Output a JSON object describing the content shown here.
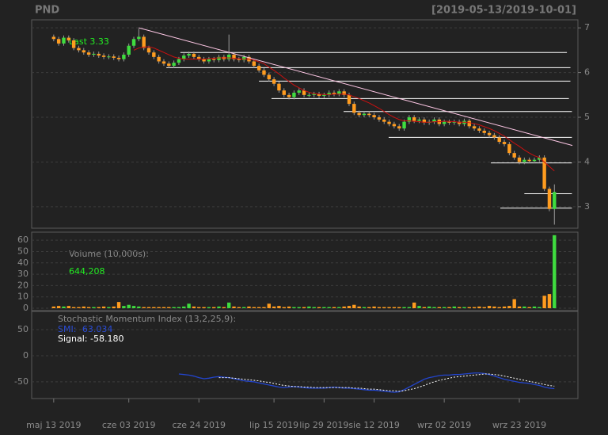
{
  "chart_data": {
    "type": "candlestick",
    "title": "PND",
    "date_range": "[2019-05-13/2019-10-01]",
    "last_label": "Last 3.33",
    "categories": [
      "maj 13 2019",
      null,
      null,
      null,
      null,
      null,
      null,
      null,
      null,
      null,
      null,
      null,
      null,
      null,
      null,
      "cze 03 2019",
      null,
      null,
      null,
      null,
      null,
      null,
      null,
      null,
      null,
      null,
      null,
      null,
      null,
      "cze 24 2019",
      null,
      null,
      null,
      null,
      null,
      null,
      null,
      null,
      null,
      null,
      null,
      null,
      null,
      null,
      "lip 15 2019",
      null,
      null,
      null,
      null,
      null,
      null,
      null,
      null,
      null,
      "lip 29 2019",
      null,
      null,
      null,
      null,
      null,
      null,
      null,
      null,
      null,
      "sie 12 2019",
      null,
      null,
      null,
      null,
      null,
      null,
      null,
      null,
      null,
      null,
      null,
      null,
      null,
      "wrz 02 2019",
      null,
      null,
      null,
      null,
      null,
      null,
      null,
      null,
      null,
      null,
      null,
      null,
      null,
      null,
      "wrz 23 2019",
      null,
      null,
      null,
      null,
      null,
      null,
      null
    ],
    "xlim": [
      -4.4,
      104.7
    ],
    "up_color": "#3fdc3f",
    "down_color": "#ff9c1f",
    "ylim": [
      2.52,
      7.18
    ],
    "yticks": [
      3,
      4,
      5,
      6,
      7
    ],
    "grid": true,
    "open": [
      6.8,
      6.75,
      6.65,
      6.78,
      6.72,
      6.55,
      6.5,
      6.45,
      6.4,
      6.42,
      6.38,
      6.35,
      6.36,
      6.33,
      6.3,
      6.4,
      6.6,
      6.75,
      6.8,
      6.55,
      6.45,
      6.35,
      6.25,
      6.2,
      6.15,
      6.22,
      6.3,
      6.38,
      6.42,
      6.35,
      6.3,
      6.25,
      6.3,
      6.28,
      6.35,
      6.3,
      6.4,
      6.3,
      6.28,
      6.35,
      6.25,
      6.15,
      6.05,
      5.95,
      5.85,
      5.75,
      5.6,
      5.5,
      5.45,
      5.55,
      5.6,
      5.5,
      5.5,
      5.52,
      5.48,
      5.5,
      5.55,
      5.52,
      5.58,
      5.5,
      5.3,
      5.1,
      5.05,
      5.08,
      5.05,
      5.0,
      4.95,
      4.9,
      4.85,
      4.8,
      4.75,
      4.9,
      5.0,
      4.92,
      4.95,
      4.88,
      4.9,
      4.95,
      4.85,
      4.9,
      4.88,
      4.9,
      4.85,
      4.92,
      4.8,
      4.75,
      4.7,
      4.65,
      4.6,
      4.55,
      4.45,
      4.4,
      4.2,
      4.1,
      4.0,
      4.05,
      4.02,
      4.05,
      4.1,
      3.4,
      2.95
    ],
    "high": [
      6.85,
      6.8,
      6.83,
      6.83,
      6.77,
      6.6,
      6.55,
      6.5,
      6.47,
      6.47,
      6.43,
      6.41,
      6.41,
      6.38,
      6.45,
      6.65,
      6.8,
      6.98,
      6.85,
      6.6,
      6.5,
      6.4,
      6.3,
      6.25,
      6.27,
      6.35,
      6.43,
      6.47,
      6.47,
      6.4,
      6.35,
      6.35,
      6.35,
      6.4,
      6.4,
      6.85,
      6.45,
      6.35,
      6.4,
      6.4,
      6.3,
      6.2,
      6.1,
      6.0,
      5.9,
      5.8,
      5.65,
      5.55,
      5.6,
      5.65,
      5.65,
      5.55,
      5.57,
      5.57,
      5.55,
      5.6,
      5.6,
      5.63,
      5.63,
      5.55,
      5.35,
      5.15,
      5.13,
      5.13,
      5.1,
      5.05,
      5.0,
      4.95,
      4.9,
      4.85,
      4.95,
      5.05,
      5.05,
      5.0,
      5.0,
      4.95,
      5.0,
      5.0,
      4.95,
      4.95,
      4.95,
      4.95,
      4.97,
      4.97,
      4.85,
      4.8,
      4.75,
      4.7,
      4.65,
      4.6,
      4.5,
      4.45,
      4.25,
      4.15,
      4.1,
      4.1,
      4.1,
      4.15,
      4.15,
      3.45,
      3.5
    ],
    "low": [
      6.7,
      6.6,
      6.6,
      6.67,
      6.5,
      6.45,
      6.4,
      6.35,
      6.35,
      6.33,
      6.3,
      6.3,
      6.28,
      6.25,
      6.25,
      6.35,
      6.55,
      6.7,
      6.5,
      6.4,
      6.3,
      6.2,
      6.15,
      6.1,
      6.1,
      6.17,
      6.25,
      6.33,
      6.3,
      6.25,
      6.2,
      6.2,
      6.23,
      6.23,
      6.25,
      6.25,
      6.25,
      6.23,
      6.23,
      6.2,
      6.1,
      6.0,
      5.9,
      5.8,
      5.7,
      5.55,
      5.45,
      5.4,
      5.4,
      5.5,
      5.45,
      5.45,
      5.45,
      5.43,
      5.43,
      5.45,
      5.47,
      5.47,
      5.45,
      5.25,
      5.05,
      5.0,
      5.0,
      5.0,
      4.95,
      4.9,
      4.85,
      4.8,
      4.75,
      4.7,
      4.7,
      4.85,
      4.87,
      4.87,
      4.83,
      4.83,
      4.85,
      4.8,
      4.8,
      4.83,
      4.83,
      4.8,
      4.8,
      4.75,
      4.7,
      4.65,
      4.6,
      4.55,
      4.5,
      4.4,
      4.35,
      4.15,
      4.05,
      3.95,
      3.95,
      3.97,
      3.97,
      4.0,
      3.35,
      2.9,
      2.6
    ],
    "close": [
      6.75,
      6.65,
      6.78,
      6.72,
      6.55,
      6.5,
      6.45,
      6.4,
      6.42,
      6.38,
      6.35,
      6.36,
      6.33,
      6.3,
      6.4,
      6.6,
      6.75,
      6.8,
      6.55,
      6.45,
      6.35,
      6.25,
      6.2,
      6.15,
      6.22,
      6.3,
      6.38,
      6.42,
      6.35,
      6.3,
      6.25,
      6.3,
      6.28,
      6.35,
      6.3,
      6.4,
      6.3,
      6.28,
      6.35,
      6.25,
      6.15,
      6.05,
      5.95,
      5.85,
      5.75,
      5.6,
      5.5,
      5.45,
      5.55,
      5.6,
      5.5,
      5.5,
      5.52,
      5.48,
      5.5,
      5.55,
      5.52,
      5.58,
      5.5,
      5.3,
      5.1,
      5.05,
      5.08,
      5.05,
      5.0,
      4.95,
      4.9,
      4.85,
      4.8,
      4.75,
      4.9,
      5.0,
      4.92,
      4.95,
      4.88,
      4.9,
      4.95,
      4.85,
      4.9,
      4.88,
      4.9,
      4.85,
      4.92,
      4.8,
      4.75,
      4.7,
      4.65,
      4.6,
      4.55,
      4.45,
      4.4,
      4.2,
      4.1,
      4.0,
      4.05,
      4.02,
      4.05,
      4.1,
      3.4,
      2.95,
      3.33
    ],
    "sma": {
      "color": "#cc1010",
      "values": [
        null,
        null,
        null,
        null,
        null,
        null,
        null,
        null,
        null,
        null,
        null,
        null,
        null,
        null,
        null,
        null,
        6.5,
        6.55,
        6.57,
        6.58,
        6.55,
        6.5,
        6.45,
        6.4,
        6.35,
        6.32,
        6.3,
        6.3,
        6.3,
        6.3,
        6.3,
        6.31,
        6.32,
        6.33,
        6.33,
        6.33,
        6.32,
        6.31,
        6.3,
        6.3,
        6.28,
        6.24,
        6.2,
        6.12,
        6.05,
        5.97,
        5.88,
        5.8,
        5.72,
        5.66,
        5.6,
        5.56,
        5.53,
        5.52,
        5.51,
        5.51,
        5.52,
        5.52,
        5.52,
        5.5,
        5.46,
        5.42,
        5.37,
        5.32,
        5.26,
        5.2,
        5.13,
        5.06,
        5.0,
        4.95,
        4.92,
        4.92,
        4.91,
        4.9,
        4.89,
        4.89,
        4.9,
        4.9,
        4.91,
        4.91,
        4.9,
        4.89,
        4.89,
        4.88,
        4.86,
        4.83,
        4.79,
        4.75,
        4.7,
        4.64,
        4.58,
        4.5,
        4.42,
        4.35,
        4.27,
        4.2,
        4.14,
        4.1,
        4.0,
        3.9,
        3.8
      ]
    },
    "trendline": {
      "color": "#ffc8e6",
      "x": [
        17,
        103.6
      ],
      "y": [
        7.0,
        4.37
      ]
    },
    "levels": [
      {
        "value": 6.45,
        "from": 25.3,
        "to": 102.5
      },
      {
        "value": 6.11,
        "from": 22.5,
        "to": 103.2
      },
      {
        "value": 5.81,
        "from": 41,
        "to": 103.2
      },
      {
        "value": 5.42,
        "from": 43.5,
        "to": 102.9
      },
      {
        "value": 5.13,
        "from": 57.9,
        "to": 103.5
      },
      {
        "value": 4.55,
        "from": 66.9,
        "to": 103.5
      },
      {
        "value": 3.98,
        "from": 87.3,
        "to": 103.5
      },
      {
        "value": 3.29,
        "from": 94,
        "to": 103.5
      },
      {
        "value": 2.97,
        "from": 89.2,
        "to": 103.5
      }
    ],
    "volume": {
      "label": "Volume (10,000s):",
      "last_label": "644,208",
      "ylim": [
        0,
        65
      ],
      "yticks": [
        0,
        10,
        20,
        30,
        40,
        50,
        60
      ],
      "values": [
        1.5,
        2,
        1.5,
        2,
        1,
        1,
        1.5,
        1,
        1,
        1,
        1.5,
        1,
        1.5,
        5.5,
        2,
        3,
        2,
        1.5,
        1,
        1,
        1,
        1,
        1,
        1,
        1,
        1,
        1.5,
        4,
        1.5,
        1,
        1,
        1,
        1,
        1.5,
        1,
        5,
        1.5,
        1,
        1,
        1.5,
        1,
        1,
        1,
        4,
        1.5,
        2,
        1,
        1.5,
        1,
        1,
        1,
        1.5,
        1,
        1,
        1,
        1,
        1,
        1,
        1.5,
        2,
        3,
        1.5,
        1,
        1,
        1.5,
        1,
        1,
        1,
        1,
        1,
        1,
        1,
        5,
        2,
        1,
        1.5,
        1,
        1,
        1,
        1,
        1.5,
        1,
        1,
        1,
        1,
        1.5,
        1,
        2,
        1.5,
        1,
        1.5,
        2,
        8,
        1.5,
        1.5,
        1,
        1.5,
        1,
        11,
        12.5,
        64.4208
      ]
    },
    "smi": {
      "title": "Stochastic Momentum Index (13,2,25,9):",
      "ylim": [
        -82,
        85
      ],
      "yticks": [
        50,
        0,
        -50
      ],
      "series": [
        {
          "label": "SMI: -63.034",
          "color": "#2244cc",
          "values": [
            null,
            null,
            null,
            null,
            null,
            null,
            null,
            null,
            null,
            null,
            null,
            null,
            null,
            null,
            null,
            null,
            null,
            null,
            null,
            null,
            null,
            null,
            null,
            null,
            null,
            -35,
            -36,
            -37,
            -39,
            -42,
            -44,
            -43,
            -41,
            -40,
            -41,
            -42,
            -44,
            -46,
            -48,
            -49,
            -50,
            -52,
            -54,
            -56,
            -58,
            -60,
            -61,
            -60,
            -59,
            -60,
            -61,
            -62,
            -62,
            -62,
            -62,
            -61,
            -60,
            -61,
            -62,
            -62,
            -63,
            -64,
            -65,
            -66,
            -66,
            -67,
            -68,
            -69,
            -70,
            -69,
            -65,
            -60,
            -55,
            -50,
            -45,
            -42,
            -40,
            -38,
            -37,
            -37,
            -36,
            -36,
            -35,
            -34,
            -33,
            -33,
            -34,
            -36,
            -39,
            -42,
            -45,
            -47,
            -49,
            -51,
            -52,
            -53,
            -55,
            -57,
            -60,
            -62,
            -63.034
          ]
        },
        {
          "label": "Signal: -58.180",
          "color": "#ffffff",
          "values": [
            null,
            null,
            null,
            null,
            null,
            null,
            null,
            null,
            null,
            null,
            null,
            null,
            null,
            null,
            null,
            null,
            null,
            null,
            null,
            null,
            null,
            null,
            null,
            null,
            null,
            null,
            null,
            null,
            null,
            null,
            null,
            null,
            null,
            -42,
            -42,
            -42,
            -43,
            -44,
            -45,
            -46,
            -47,
            -48,
            -50,
            -51,
            -53,
            -55,
            -57,
            -58,
            -59,
            -59,
            -60,
            -60,
            -61,
            -61,
            -61,
            -61,
            -61,
            -61,
            -61,
            -61,
            -62,
            -62,
            -63,
            -64,
            -64,
            -65,
            -66,
            -67,
            -67,
            -68,
            -67,
            -65,
            -63,
            -60,
            -57,
            -53,
            -50,
            -47,
            -45,
            -43,
            -41,
            -40,
            -39,
            -38,
            -37,
            -36,
            -35,
            -35,
            -36,
            -37,
            -39,
            -41,
            -43,
            -45,
            -47,
            -49,
            -51,
            -53,
            -55,
            -57,
            -58.18
          ]
        }
      ]
    }
  }
}
